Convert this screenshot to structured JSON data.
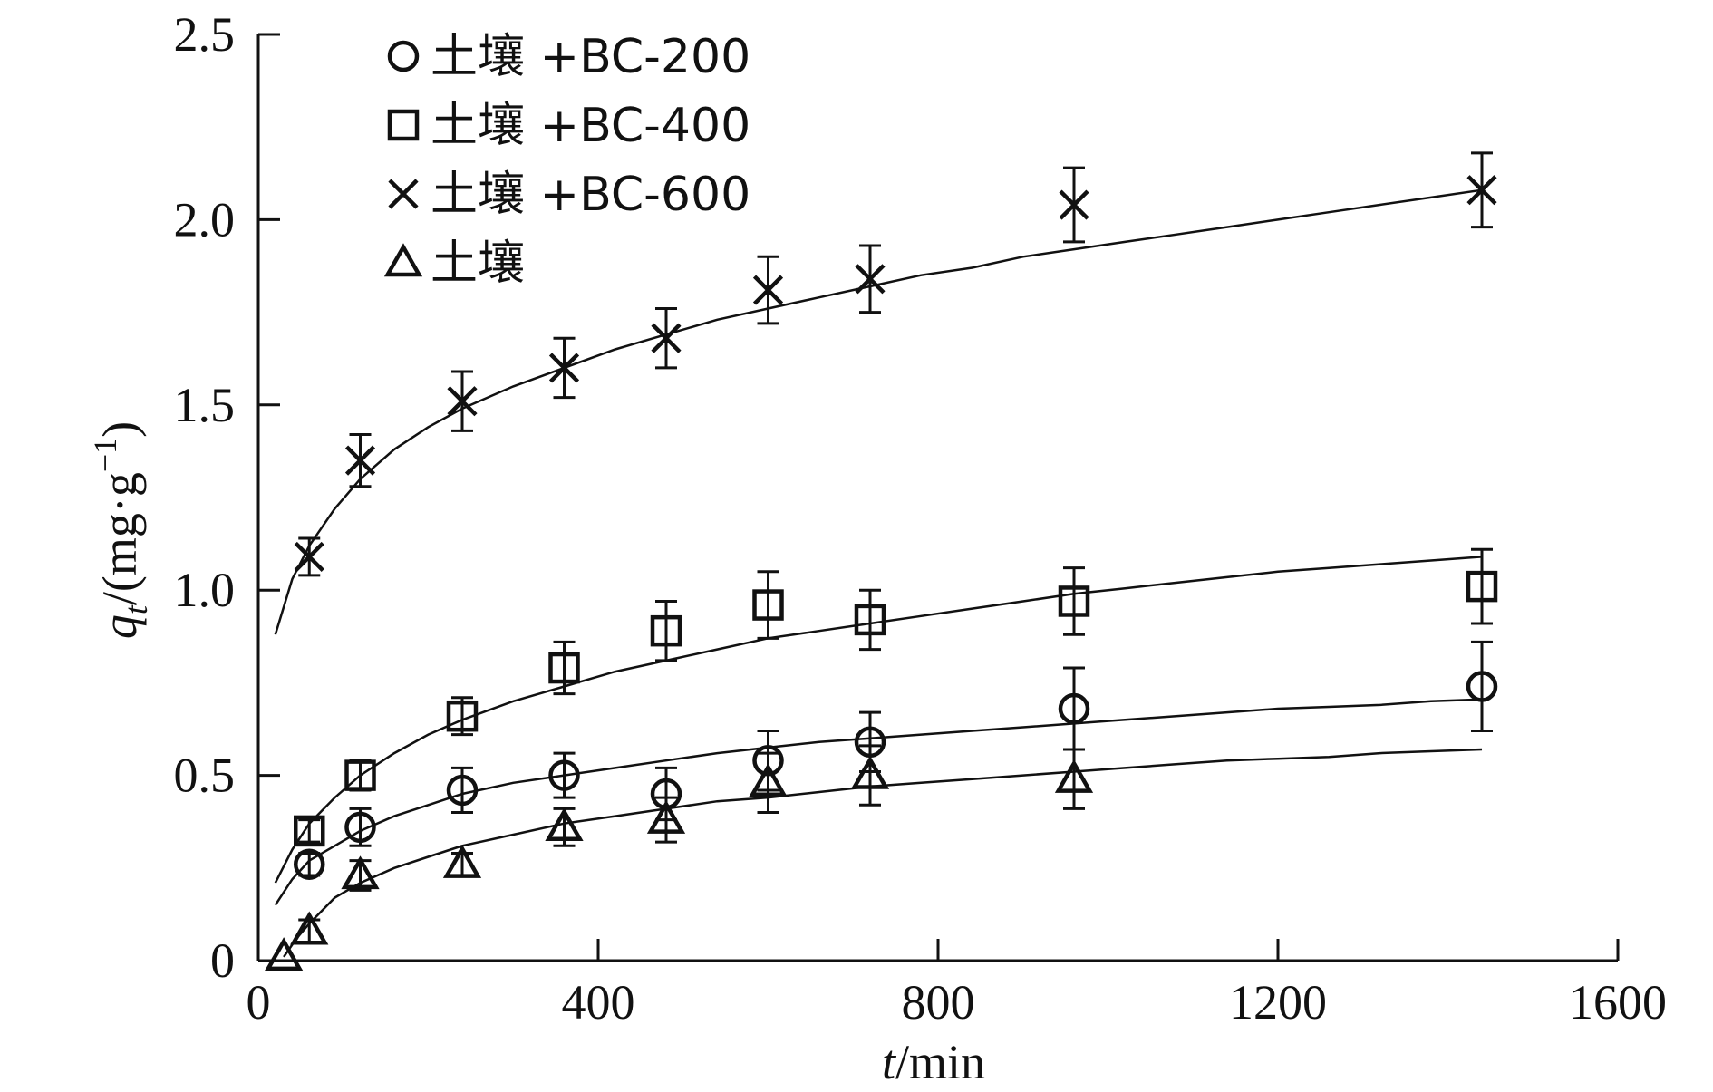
{
  "chart_data": {
    "type": "scatter",
    "title": "",
    "xlabel_var": "t",
    "xlabel_unit": "/min",
    "ylabel_var": "q",
    "ylabel_sub": "t",
    "ylabel_unit": "/(mg·g",
    "ylabel_sup": "−1",
    "ylabel_close": ")",
    "xlim": [
      0,
      1600
    ],
    "ylim": [
      0,
      2.5
    ],
    "x_ticks": [
      0,
      400,
      800,
      1200,
      1600
    ],
    "x_tick_labels": [
      "0",
      "400",
      "800",
      "1200",
      "1600"
    ],
    "y_ticks": [
      0,
      0.5,
      1.0,
      1.5,
      2.0,
      2.5
    ],
    "y_tick_labels": [
      "0",
      "0.5",
      "1.0",
      "1.5",
      "2.0",
      "2.5"
    ],
    "grid": false,
    "legend_position": "top-left",
    "series": [
      {
        "name": "土壤 +BC-200",
        "marker": "circle",
        "x": [
          60,
          120,
          240,
          360,
          480,
          600,
          720,
          960,
          1440
        ],
        "y": [
          0.26,
          0.36,
          0.46,
          0.5,
          0.45,
          0.54,
          0.59,
          0.68,
          0.74
        ],
        "err": [
          0.03,
          0.05,
          0.06,
          0.06,
          0.07,
          0.08,
          0.08,
          0.11,
          0.12
        ],
        "fit_x": [
          20,
          40,
          60,
          90,
          120,
          160,
          200,
          240,
          300,
          360,
          420,
          480,
          540,
          600,
          660,
          720,
          780,
          840,
          900,
          960,
          1020,
          1080,
          1140,
          1200,
          1260,
          1320,
          1380,
          1440
        ],
        "fit_y": [
          0.15,
          0.22,
          0.27,
          0.31,
          0.35,
          0.39,
          0.42,
          0.45,
          0.48,
          0.5,
          0.52,
          0.54,
          0.56,
          0.575,
          0.59,
          0.6,
          0.61,
          0.62,
          0.63,
          0.64,
          0.65,
          0.66,
          0.67,
          0.68,
          0.685,
          0.69,
          0.7,
          0.705
        ]
      },
      {
        "name": "土壤 +BC-400",
        "marker": "square",
        "x": [
          60,
          120,
          240,
          360,
          480,
          600,
          720,
          960,
          1440
        ],
        "y": [
          0.35,
          0.5,
          0.66,
          0.79,
          0.89,
          0.96,
          0.92,
          0.97,
          1.01
        ],
        "err": [
          0.03,
          0.04,
          0.05,
          0.07,
          0.08,
          0.09,
          0.08,
          0.09,
          0.1
        ],
        "fit_x": [
          20,
          40,
          60,
          90,
          120,
          160,
          200,
          240,
          300,
          360,
          420,
          480,
          540,
          600,
          660,
          720,
          780,
          840,
          900,
          960,
          1020,
          1080,
          1140,
          1200,
          1260,
          1320,
          1380,
          1440
        ],
        "fit_y": [
          0.21,
          0.3,
          0.37,
          0.44,
          0.5,
          0.56,
          0.61,
          0.65,
          0.7,
          0.74,
          0.78,
          0.81,
          0.84,
          0.87,
          0.89,
          0.91,
          0.93,
          0.95,
          0.97,
          0.99,
          1.005,
          1.02,
          1.035,
          1.05,
          1.06,
          1.07,
          1.08,
          1.09
        ]
      },
      {
        "name": "土壤 +BC-600",
        "marker": "cross",
        "x": [
          60,
          120,
          240,
          360,
          480,
          600,
          720,
          960,
          1440
        ],
        "y": [
          1.09,
          1.35,
          1.51,
          1.6,
          1.68,
          1.81,
          1.84,
          2.04,
          2.08
        ],
        "err": [
          0.05,
          0.07,
          0.08,
          0.08,
          0.08,
          0.09,
          0.09,
          0.1,
          0.1
        ],
        "fit_x": [
          20,
          40,
          60,
          90,
          120,
          160,
          200,
          240,
          300,
          360,
          420,
          480,
          540,
          600,
          660,
          720,
          780,
          840,
          900,
          960,
          1020,
          1080,
          1140,
          1200,
          1260,
          1320,
          1380,
          1440
        ],
        "fit_y": [
          0.88,
          1.03,
          1.12,
          1.22,
          1.3,
          1.38,
          1.44,
          1.49,
          1.55,
          1.6,
          1.65,
          1.69,
          1.73,
          1.76,
          1.79,
          1.82,
          1.85,
          1.87,
          1.9,
          1.92,
          1.94,
          1.96,
          1.98,
          2.0,
          2.02,
          2.04,
          2.06,
          2.08
        ]
      },
      {
        "name": "土壤",
        "marker": "triangle",
        "x": [
          30,
          60,
          120,
          240,
          360,
          480,
          600,
          720,
          960
        ],
        "y": [
          0.01,
          0.08,
          0.23,
          0.26,
          0.36,
          0.38,
          0.48,
          0.5,
          0.49
        ],
        "err": [
          0.0,
          0.03,
          0.04,
          0.03,
          0.05,
          0.06,
          0.08,
          0.08,
          0.08
        ],
        "fit_x": [
          30,
          45,
          60,
          90,
          120,
          160,
          200,
          240,
          300,
          360,
          420,
          480,
          540,
          600,
          660,
          720,
          780,
          840,
          900,
          960,
          1020,
          1080,
          1140,
          1200,
          1260,
          1320,
          1380,
          1440
        ],
        "fit_y": [
          0.01,
          0.06,
          0.1,
          0.17,
          0.21,
          0.25,
          0.28,
          0.31,
          0.34,
          0.37,
          0.39,
          0.41,
          0.43,
          0.44,
          0.455,
          0.47,
          0.48,
          0.49,
          0.5,
          0.51,
          0.52,
          0.53,
          0.54,
          0.545,
          0.55,
          0.56,
          0.565,
          0.57
        ]
      }
    ]
  }
}
